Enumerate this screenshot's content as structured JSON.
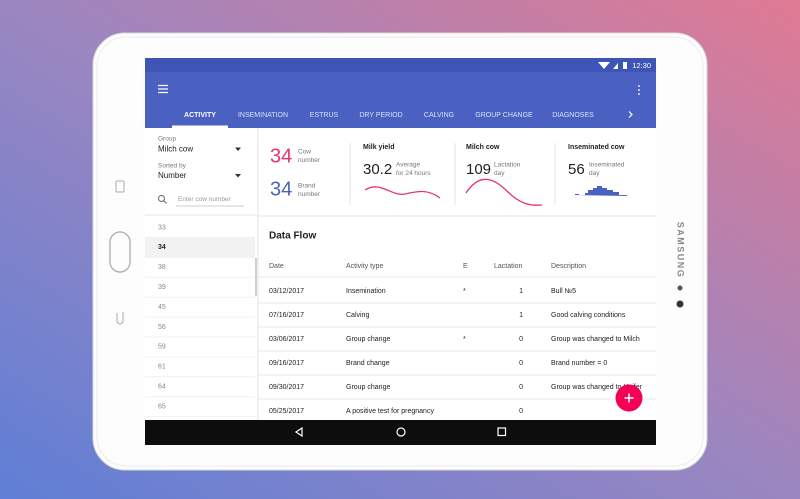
{
  "status_bar": {
    "time": "12:30"
  },
  "tabs": [
    "ACTIVITY",
    "INSEMINATION",
    "ESTRUS",
    "DRY PERIOD",
    "CALVING",
    "GROUP CHANGE",
    "DIAGNOSES"
  ],
  "filter": {
    "group_label": "Group",
    "group_value": "Milch cow",
    "sort_label": "Sorted by",
    "sort_value": "Number",
    "search_placeholder": "Enter cow number"
  },
  "cow_numbers": [
    "33",
    "34",
    "38",
    "39",
    "45",
    "56",
    "59",
    "61",
    "64",
    "65"
  ],
  "stats": [
    {
      "value": "34",
      "caption": [
        "Cow",
        "number"
      ]
    },
    {
      "value": "34",
      "caption": [
        "Brand",
        "number"
      ]
    },
    {
      "title": "Milk yield",
      "value": "30.2",
      "caption": [
        "Average",
        "for 24 hours"
      ]
    },
    {
      "title": "Milch cow",
      "value": "109",
      "caption": [
        "Lactation",
        "day"
      ]
    },
    {
      "title": "Inseminated cow",
      "value": "56",
      "caption": [
        "Inseminated",
        "day"
      ]
    }
  ],
  "table": {
    "title": "Data Flow",
    "columns": [
      "Date",
      "Activity type",
      "E",
      "Lactation",
      "Description"
    ],
    "rows": [
      [
        "03/12/2017",
        "Insemination",
        "*",
        "1",
        "Bull №5"
      ],
      [
        "07/16/2017",
        "Calving",
        null,
        "1",
        "Good calving conditions"
      ],
      [
        "03/06/2017",
        "Group change",
        "*",
        "0",
        "Group was changed to Milch"
      ],
      [
        "09/16/2017",
        "Brand change",
        null,
        "0",
        "Brand number = 0"
      ],
      [
        "09/30/2017",
        "Group change",
        null,
        "0",
        "Group was changed to Heifer"
      ],
      [
        "05/25/2017",
        "A positive test for pregnancy",
        null,
        "0",
        null
      ]
    ]
  },
  "device": {
    "brand": "SAMSUNG"
  }
}
